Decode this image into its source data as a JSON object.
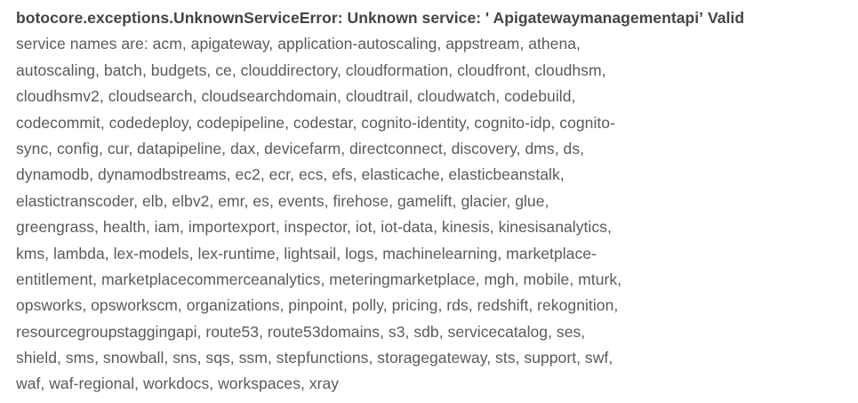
{
  "error": {
    "exception_prefix": "botocore.exceptions.UnknownServiceError: Unknown service: '",
    "service_name": " Apigatewaymanagementapi’",
    "valid_word": "Valid",
    "lines": [
      "service names are: acm, apigateway, application-autoscaling, appstream, athena,",
      "autoscaling, batch, budgets, ce, clouddirectory, cloudformation, cloudfront, cloudhsm,",
      "cloudhsmv2, cloudsearch, cloudsearchdomain, cloudtrail, cloudwatch, codebuild,",
      "codecommit, codedeploy, codepipeline, codestar, cognito-identity, cognito-idp, cognito-",
      "sync, config, cur, datapipeline, dax, devicefarm, directconnect, discovery, dms, ds,",
      "dynamodb, dynamodbstreams, ec2, ecr, ecs, efs, elasticache, elasticbeanstalk,",
      "elastictranscoder, elb, elbv2, emr, es, events, firehose, gamelift, glacier, glue,",
      "greengrass, health, iam, importexport, inspector, iot, iot-data, kinesis, kinesisanalytics,",
      "kms, lambda, lex-models, lex-runtime, lightsail, logs, machinelearning, marketplace-",
      "entitlement, marketplacecommerceanalytics, meteringmarketplace, mgh, mobile, mturk,",
      "opsworks, opsworkscm, organizations, pinpoint, polly, pricing, rds, redshift, rekognition,",
      "resourcegroupstaggingapi, route53, route53domains, s3, sdb, servicecatalog, ses,",
      "shield, sms, snowball, sns, sqs, ssm, stepfunctions, storagegateway, sts, support, swf,",
      "waf, waf-regional, workdocs, workspaces, xray"
    ]
  }
}
